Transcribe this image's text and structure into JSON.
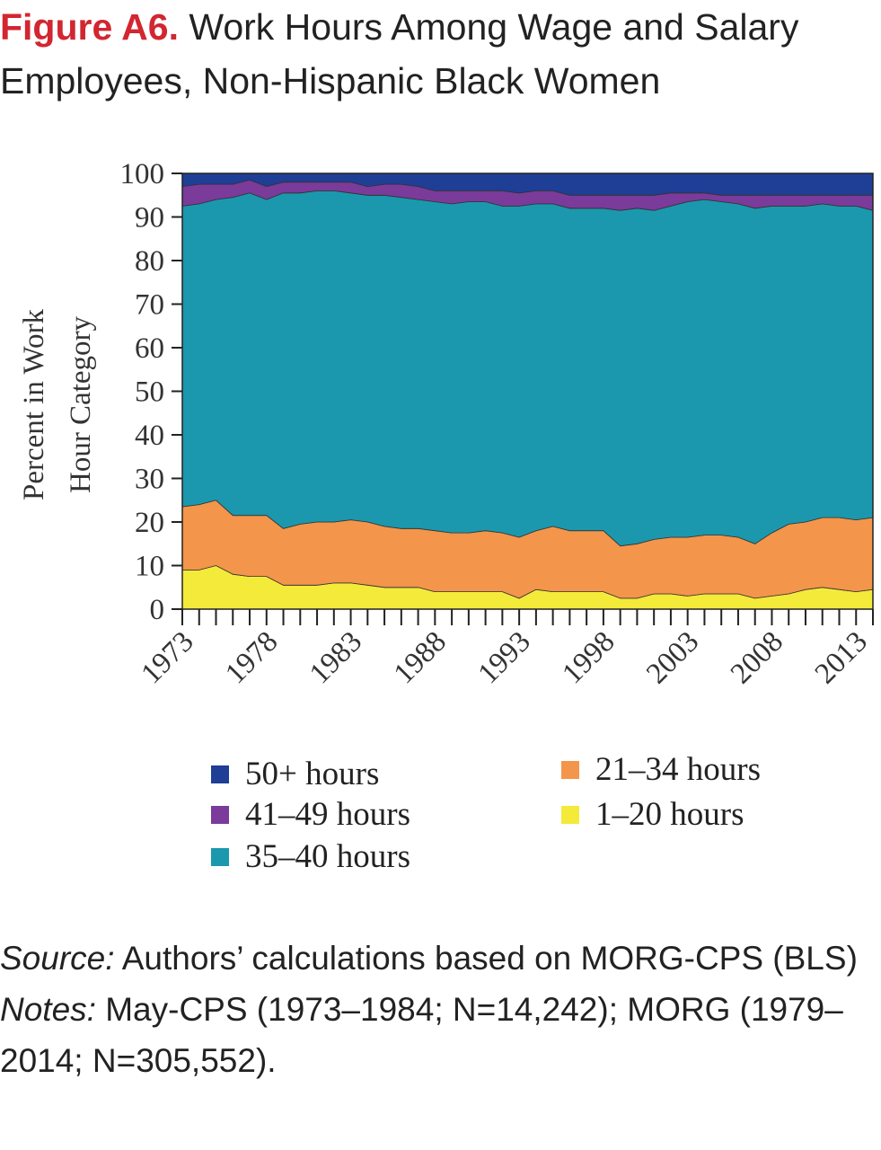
{
  "header": {
    "figure_label": "Figure A6.",
    "title": "Work Hours Among Wage and Salary Employees, Non-Hispanic Black Women"
  },
  "chart_data": {
    "type": "area",
    "stacked": true,
    "title": "Work Hours Among Wage and Salary Employees, Non-Hispanic Black Women",
    "xlabel": "",
    "ylabel": "Percent in Work Hour Category",
    "ylim": [
      0,
      100
    ],
    "yticks": [
      "0",
      "10",
      "20",
      "30",
      "40",
      "50",
      "60",
      "70",
      "80",
      "90",
      "100"
    ],
    "xticks": [
      "1973",
      "1978",
      "1983",
      "1988",
      "1993",
      "1998",
      "2003",
      "2008",
      "2013"
    ],
    "x": [
      1973,
      1974,
      1975,
      1976,
      1977,
      1978,
      1979,
      1980,
      1981,
      1982,
      1983,
      1984,
      1985,
      1986,
      1987,
      1988,
      1989,
      1990,
      1991,
      1992,
      1993,
      1994,
      1995,
      1996,
      1997,
      1998,
      1999,
      2000,
      2001,
      2002,
      2003,
      2004,
      2005,
      2006,
      2007,
      2008,
      2009,
      2010,
      2011,
      2012,
      2013,
      2014
    ],
    "series": [
      {
        "name": "1–20 hours",
        "color": "#f4ea3a",
        "values": [
          9,
          9,
          10,
          8,
          7.5,
          7.5,
          5.5,
          5.5,
          5.5,
          6,
          6,
          5.5,
          5,
          5,
          5,
          4,
          4,
          4,
          4,
          4,
          2.5,
          4.5,
          4,
          4,
          4,
          4,
          2.5,
          2.5,
          3.5,
          3.5,
          3,
          3.5,
          3.5,
          3.5,
          2.5,
          3,
          3.5,
          4.5,
          5,
          4.5,
          4,
          4.5
        ]
      },
      {
        "name": "21–34 hours",
        "color": "#f3954b",
        "values": [
          14.5,
          15,
          15,
          13.5,
          14,
          14,
          13,
          14,
          14.5,
          14,
          14.5,
          14.5,
          14,
          13.5,
          13.5,
          14,
          13.5,
          13.5,
          14,
          13.5,
          14,
          13.5,
          15,
          14,
          14,
          14,
          12,
          12.5,
          12.5,
          13,
          13.5,
          13.5,
          13.5,
          13,
          12.5,
          14.5,
          16,
          15.5,
          16,
          16.5,
          16.5,
          16.5
        ]
      },
      {
        "name": "35–40 hours",
        "color": "#1b98ad",
        "values": [
          69,
          69,
          69,
          73,
          74,
          72.5,
          77,
          76,
          76,
          76,
          75,
          75,
          76,
          76,
          75.5,
          75.5,
          75.5,
          76,
          75.5,
          75,
          76,
          75,
          74,
          74,
          74,
          74,
          77,
          77,
          75.5,
          76,
          77,
          77,
          76.5,
          76.5,
          77,
          75,
          73,
          72.5,
          72,
          71.5,
          72,
          70.5
        ]
      },
      {
        "name": "41–49 hours",
        "color": "#7a3b9a",
        "values": [
          4.5,
          4.5,
          3.5,
          3,
          3,
          3,
          2.5,
          2.5,
          2,
          2,
          2.5,
          2,
          2.5,
          3,
          3,
          2.5,
          3,
          2.5,
          2.5,
          3.5,
          3,
          3,
          3,
          3,
          3,
          3,
          3.5,
          3,
          3.5,
          3,
          2,
          1.5,
          1.5,
          2,
          3,
          2.5,
          2.5,
          2.5,
          2,
          2.5,
          2.5,
          3.5
        ]
      },
      {
        "name": "50+ hours",
        "color": "#1f3e96",
        "values": [
          3,
          2.5,
          2.5,
          2.5,
          2.5,
          3,
          2,
          2,
          2,
          2,
          2,
          3,
          2.5,
          2.5,
          3,
          4,
          4,
          4,
          4,
          4,
          4.5,
          4,
          4,
          5,
          5,
          5,
          5,
          5,
          5,
          4.5,
          4.5,
          4.5,
          5,
          5,
          5,
          5,
          5,
          5,
          5,
          5,
          5,
          5
        ]
      }
    ],
    "legend": {
      "entries": [
        "50+ hours",
        "41–49 hours",
        "35–40 hours",
        "21–34 hours",
        "1–20 hours"
      ]
    },
    "grid": false
  },
  "footer": {
    "source_label": "Source:",
    "source_text": " Authors’ calculations based on MORG-CPS (BLS)",
    "notes_label": "Notes:",
    "notes_text": " May-CPS (1973–1984; N=14,242); MORG (1979–2014; N=305,552)."
  }
}
